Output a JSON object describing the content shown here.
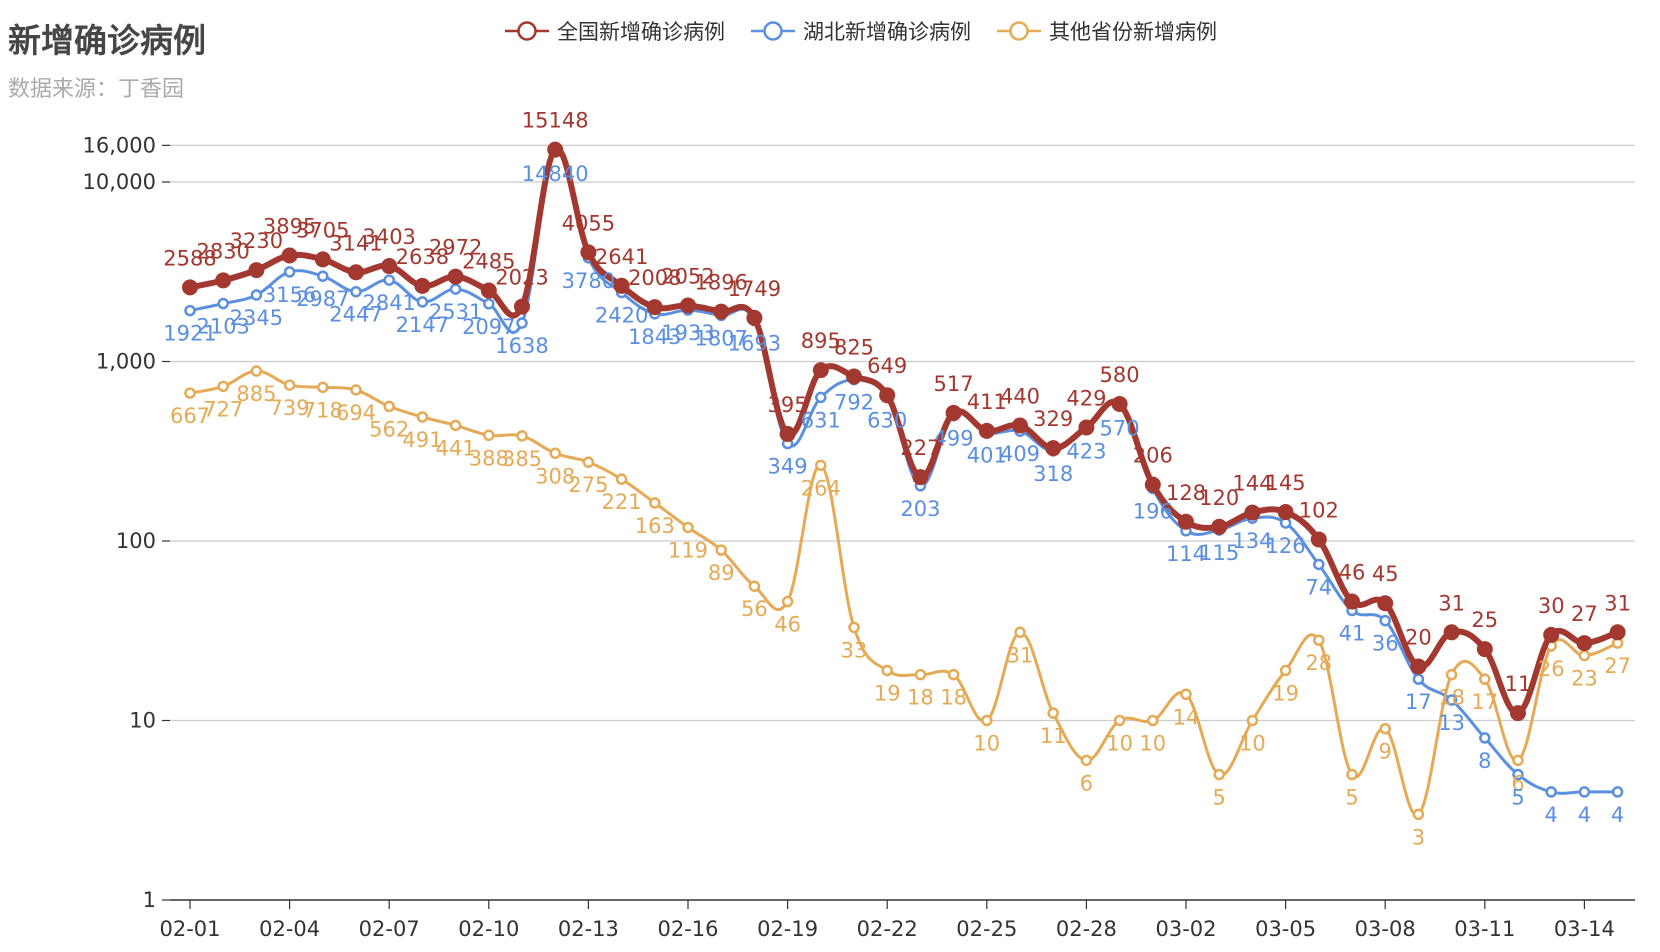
{
  "chart_data": {
    "type": "line",
    "title": "新增确诊病例",
    "subtitle": "数据来源：丁香园",
    "yscale": "log",
    "ylim": [
      1,
      16000
    ],
    "yticks": [
      {
        "value": 1,
        "label": "1"
      },
      {
        "value": 10,
        "label": "10"
      },
      {
        "value": 100,
        "label": "100"
      },
      {
        "value": 1000,
        "label": "1,000"
      },
      {
        "value": 10000,
        "label": "10,000"
      },
      {
        "value": 16000,
        "label": "16,000"
      }
    ],
    "grid": true,
    "legend_position": "top-center",
    "x": [
      "02-01",
      "02-02",
      "02-03",
      "02-04",
      "02-05",
      "02-06",
      "02-07",
      "02-08",
      "02-09",
      "02-10",
      "02-11",
      "02-12",
      "02-13",
      "02-14",
      "02-15",
      "02-16",
      "02-17",
      "02-18",
      "02-19",
      "02-20",
      "02-21",
      "02-22",
      "02-23",
      "02-24",
      "02-25",
      "02-26",
      "02-27",
      "02-28",
      "02-29",
      "03-01",
      "03-02",
      "03-03",
      "03-04",
      "03-05",
      "03-06",
      "03-07",
      "03-08",
      "03-09",
      "03-10",
      "03-11",
      "03-12",
      "03-13",
      "03-14",
      "03-15"
    ],
    "xtick_labels": [
      "02-01",
      "02-04",
      "02-07",
      "02-10",
      "02-13",
      "02-16",
      "02-19",
      "02-22",
      "02-25",
      "02-28",
      "03-02",
      "03-05",
      "03-08",
      "03-11",
      "03-14"
    ],
    "series": [
      {
        "name": "全国新增确诊病例",
        "color": "#a2382f",
        "values": [
          2588,
          2830,
          3230,
          3895,
          3705,
          3141,
          3403,
          2638,
          2972,
          2485,
          2023,
          15148,
          4055,
          2641,
          2008,
          2052,
          1896,
          1749,
          395,
          895,
          825,
          649,
          227,
          517,
          411,
          440,
          329,
          429,
          580,
          206,
          128,
          120,
          144,
          145,
          102,
          46,
          45,
          20,
          31,
          25,
          11,
          30,
          27,
          31
        ]
      },
      {
        "name": "湖北新增确诊病例",
        "color": "#5b8fe0",
        "values": [
          1921,
          2103,
          2345,
          3156,
          2987,
          2447,
          2841,
          2147,
          2531,
          2097,
          1638,
          14840,
          3780,
          2420,
          1843,
          1933,
          1807,
          1693,
          349,
          631,
          792,
          630,
          203,
          499,
          401,
          409,
          318,
          423,
          570,
          196,
          114,
          115,
          134,
          126,
          74,
          41,
          36,
          17,
          13,
          8,
          5,
          4,
          4,
          4
        ]
      },
      {
        "name": "其他省份新增病例",
        "color": "#e5aa56",
        "values": [
          667,
          727,
          885,
          739,
          718,
          694,
          562,
          491,
          441,
          388,
          385,
          308,
          275,
          221,
          163,
          119,
          89,
          56,
          46,
          264,
          33,
          19,
          18,
          18,
          10,
          31,
          11,
          6,
          10,
          10,
          14,
          5,
          10,
          19,
          28,
          5,
          9,
          3,
          18,
          17,
          6,
          26,
          23,
          27
        ]
      }
    ]
  }
}
